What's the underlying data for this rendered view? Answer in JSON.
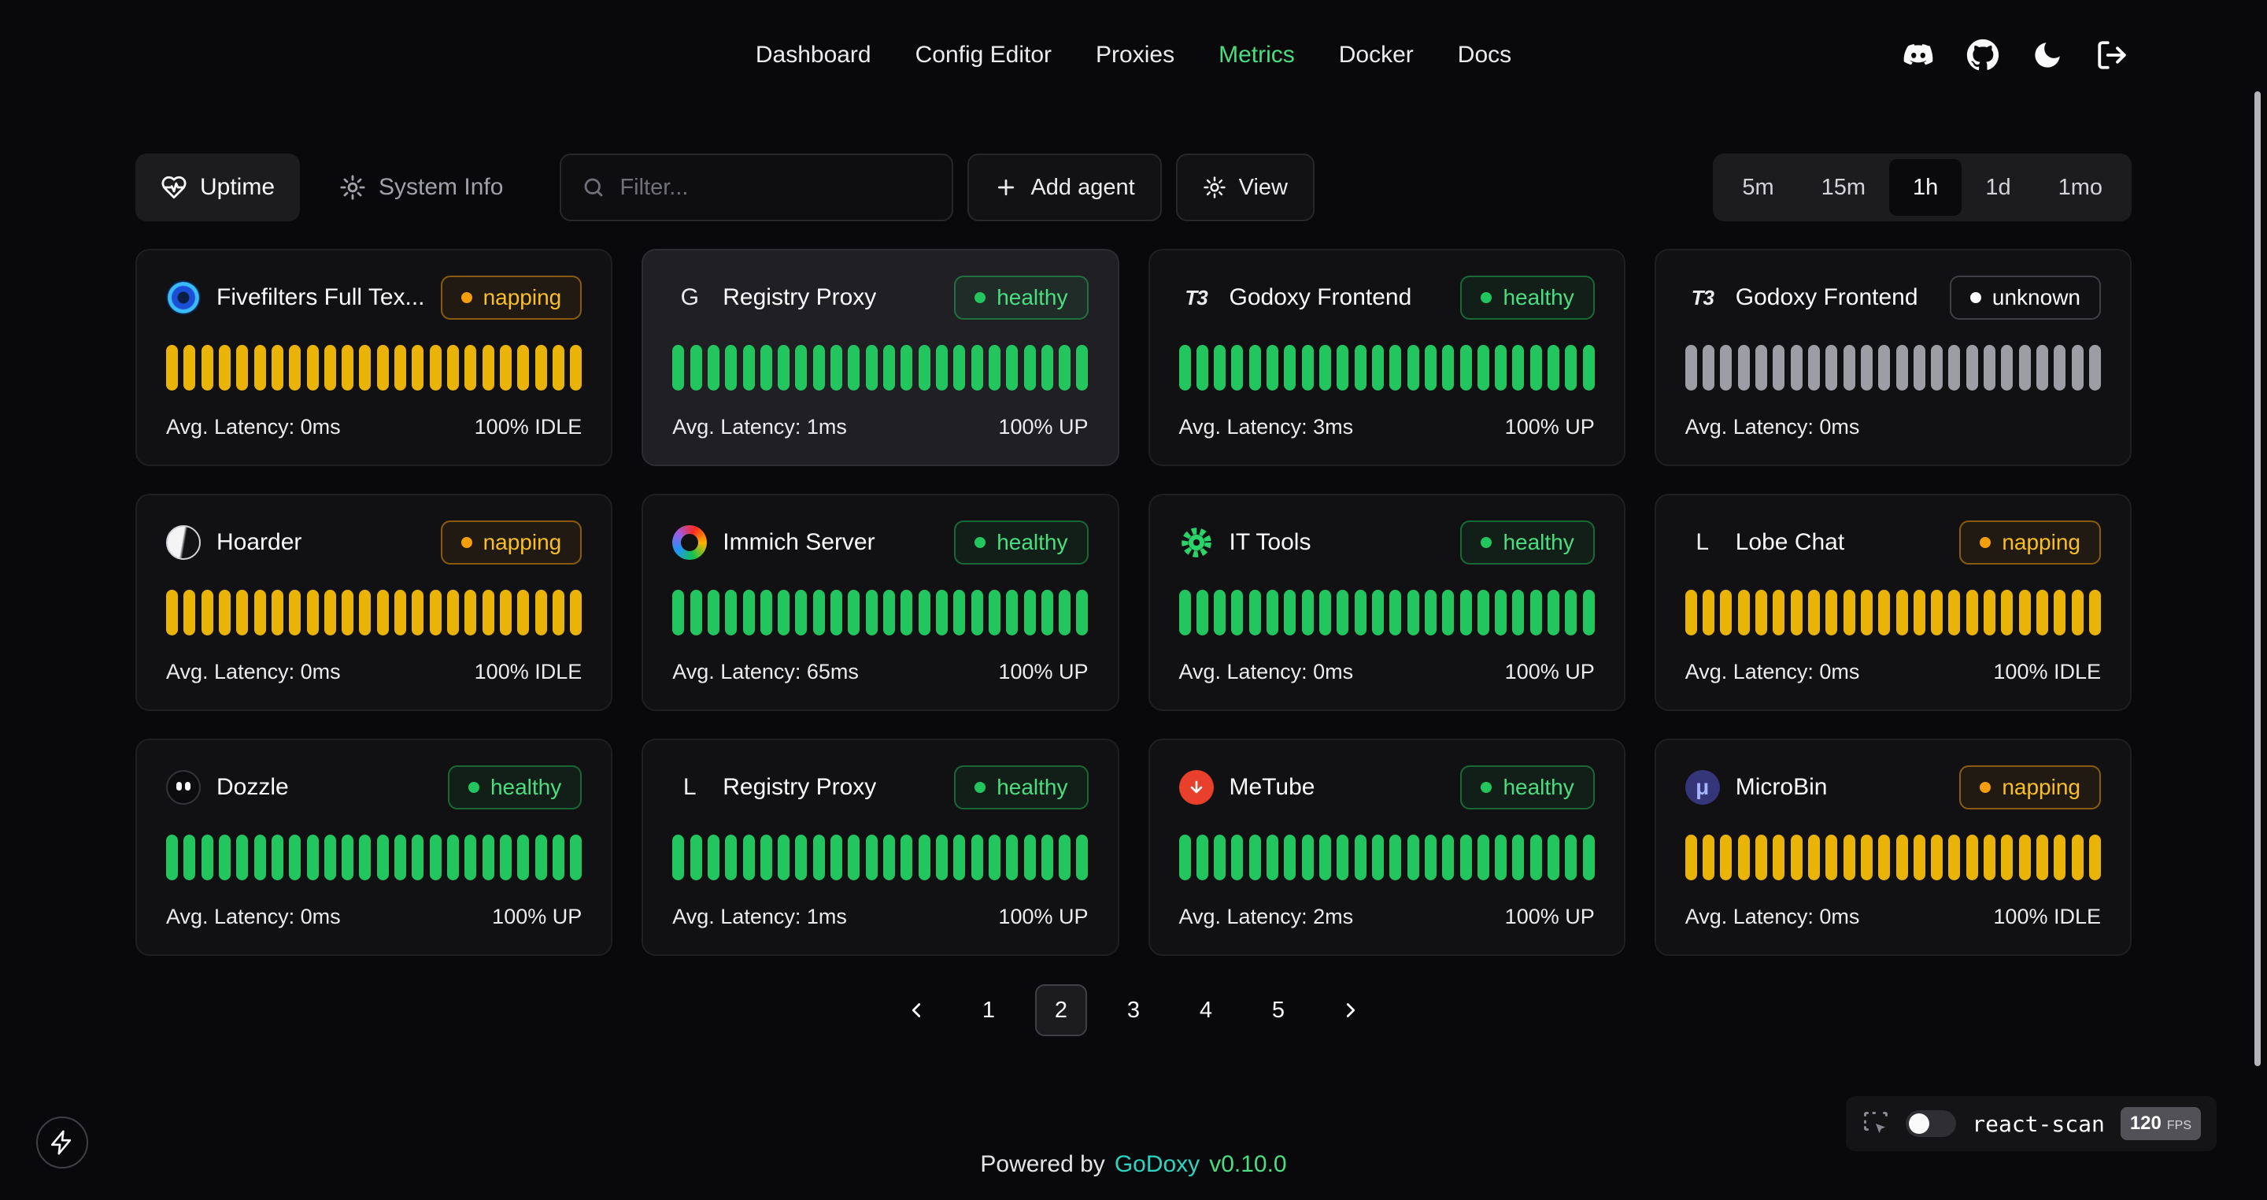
{
  "nav": {
    "items": [
      {
        "label": "Dashboard",
        "active": false
      },
      {
        "label": "Config Editor",
        "active": false
      },
      {
        "label": "Proxies",
        "active": false
      },
      {
        "label": "Metrics",
        "active": true
      },
      {
        "label": "Docker",
        "active": false
      },
      {
        "label": "Docs",
        "active": false
      }
    ],
    "icons": [
      "discord-icon",
      "github-icon",
      "dark-mode-moon-icon",
      "logout-icon"
    ]
  },
  "toolbar": {
    "tabs": [
      {
        "label": "Uptime",
        "icon": "heart-pulse-icon",
        "active": true
      },
      {
        "label": "System Info",
        "icon": "gear-icon",
        "active": false
      }
    ],
    "filter_placeholder": "Filter...",
    "add_agent_label": "Add agent",
    "view_label": "View"
  },
  "time_ranges": [
    {
      "label": "5m",
      "active": false
    },
    {
      "label": "15m",
      "active": false
    },
    {
      "label": "1h",
      "active": true
    },
    {
      "label": "1d",
      "active": false
    },
    {
      "label": "1mo",
      "active": false
    }
  ],
  "status_styles": {
    "healthy": {
      "label": "healthy",
      "text": "#4ade80",
      "dot": "#22c55e",
      "border": "rgba(34,197,94,0.45)",
      "bg": "rgba(34,197,94,0.08)",
      "bar": "#22c55e"
    },
    "napping": {
      "label": "napping",
      "text": "#fbbf24",
      "dot": "#f59e0b",
      "border": "rgba(245,158,11,0.5)",
      "bg": "rgba(245,158,11,0.07)",
      "bar": "#eab308"
    },
    "unknown": {
      "label": "unknown",
      "text": "#fafafa",
      "dot": "#fafafa",
      "border": "#3f3f46",
      "bg": "transparent",
      "bar": "#9d9da6"
    }
  },
  "cards": [
    {
      "name": "Fivefilters Full Tex...",
      "icon": "fivefilters",
      "status": "napping",
      "latency": "Avg. Latency: 0ms",
      "uptime": "100% IDLE",
      "highlighted": false,
      "bars": 24
    },
    {
      "name": "Registry Proxy",
      "icon": "letter-g",
      "glyph": "G",
      "status": "healthy",
      "latency": "Avg. Latency: 1ms",
      "uptime": "100% UP",
      "highlighted": true,
      "bars": 24
    },
    {
      "name": "Godoxy Frontend",
      "icon": "t3",
      "glyph": "T3",
      "status": "healthy",
      "latency": "Avg. Latency: 3ms",
      "uptime": "100% UP",
      "highlighted": false,
      "bars": 24
    },
    {
      "name": "Godoxy Frontend",
      "icon": "t3",
      "glyph": "T3",
      "status": "unknown",
      "latency": "Avg. Latency: 0ms",
      "uptime": "",
      "highlighted": false,
      "bars": 24
    },
    {
      "name": "Hoarder",
      "icon": "hoarder",
      "status": "napping",
      "latency": "Avg. Latency: 0ms",
      "uptime": "100% IDLE",
      "highlighted": false,
      "bars": 24
    },
    {
      "name": "Immich Server",
      "icon": "immich",
      "status": "healthy",
      "latency": "Avg. Latency: 65ms",
      "uptime": "100% UP",
      "highlighted": false,
      "bars": 24
    },
    {
      "name": "IT Tools",
      "icon": "it-tools",
      "status": "healthy",
      "latency": "Avg. Latency: 0ms",
      "uptime": "100% UP",
      "highlighted": false,
      "bars": 24
    },
    {
      "name": "Lobe Chat",
      "icon": "letter-l",
      "glyph": "L",
      "status": "napping",
      "latency": "Avg. Latency: 0ms",
      "uptime": "100% IDLE",
      "highlighted": false,
      "bars": 24
    },
    {
      "name": "Dozzle",
      "icon": "dozzle",
      "status": "healthy",
      "latency": "Avg. Latency: 0ms",
      "uptime": "100% UP",
      "highlighted": false,
      "bars": 24
    },
    {
      "name": "Registry Proxy",
      "icon": "letter-l",
      "glyph": "L",
      "status": "healthy",
      "latency": "Avg. Latency: 1ms",
      "uptime": "100% UP",
      "highlighted": false,
      "bars": 24
    },
    {
      "name": "MeTube",
      "icon": "metube",
      "status": "healthy",
      "latency": "Avg. Latency: 2ms",
      "uptime": "100% UP",
      "highlighted": false,
      "bars": 24
    },
    {
      "name": "MicroBin",
      "icon": "microbin",
      "glyph": "μ",
      "status": "napping",
      "latency": "Avg. Latency: 0ms",
      "uptime": "100% IDLE",
      "highlighted": false,
      "bars": 24
    }
  ],
  "pagination": {
    "pages": [
      "1",
      "2",
      "3",
      "4",
      "5"
    ],
    "active_index": 1
  },
  "footer": {
    "powered_by": "Powered by",
    "brand": "GoDoxy",
    "version": "v0.10.0"
  },
  "react_scan": {
    "label": "react-scan",
    "fps_value": "120",
    "fps_unit": "FPS"
  }
}
